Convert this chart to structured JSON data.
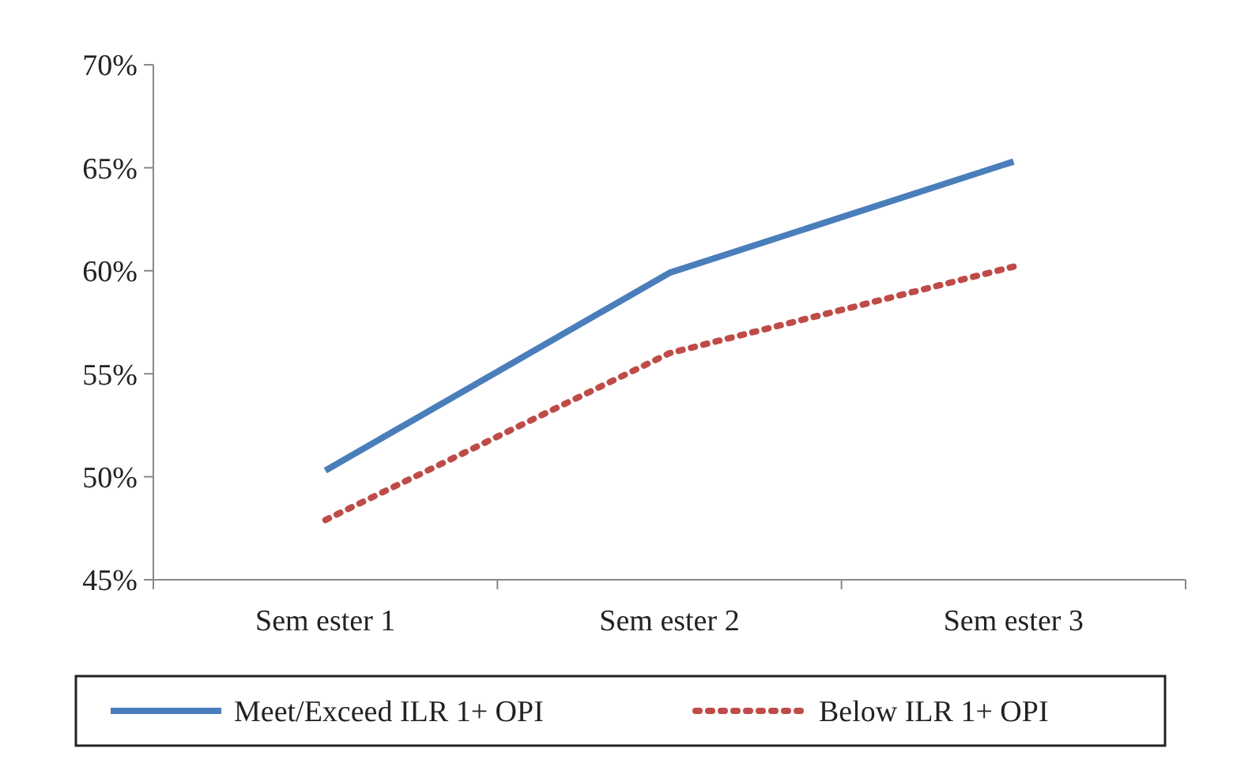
{
  "chart_data": {
    "type": "line",
    "categories": [
      "Sem ester 1",
      "Sem ester 2",
      "Sem ester 3"
    ],
    "series": [
      {
        "name": "Meet/Exceed ILR 1+ OPI",
        "color": "#4a7ebb",
        "values": [
          50.3,
          59.9,
          65.3
        ],
        "line_style": "solid"
      },
      {
        "name": "Below ILR 1+ OPI",
        "color": "#be4b48",
        "values": [
          47.9,
          56.0,
          60.2
        ],
        "line_style": "dotted"
      }
    ],
    "ylim": [
      45,
      70
    ],
    "yticks": [
      {
        "value": 45,
        "label": "45%"
      },
      {
        "value": 50,
        "label": "50%"
      },
      {
        "value": 55,
        "label": "55%"
      },
      {
        "value": 60,
        "label": "60%"
      },
      {
        "value": 65,
        "label": "65%"
      },
      {
        "value": 70,
        "label": "70%"
      }
    ],
    "grid": false,
    "legend": "bottom",
    "marker": "none"
  }
}
